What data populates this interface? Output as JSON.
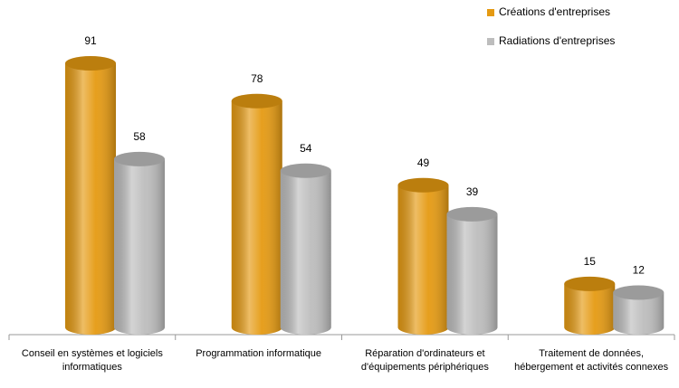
{
  "chart_data": {
    "type": "bar",
    "categories": [
      "Conseil en systèmes et logiciels informatiques",
      "Programmation informatique",
      "Réparation d'ordinateurs et d'équipements périphériques",
      "Traitement de données, hébergement et activités connexes"
    ],
    "series": [
      {
        "name": "Créations d'entreprises",
        "color": "#e59a12",
        "values": [
          91,
          78,
          49,
          15
        ]
      },
      {
        "name": "Radiations d'entreprises",
        "color": "#bdbdbd",
        "values": [
          58,
          54,
          39,
          12
        ]
      }
    ],
    "legend": "top-right"
  }
}
